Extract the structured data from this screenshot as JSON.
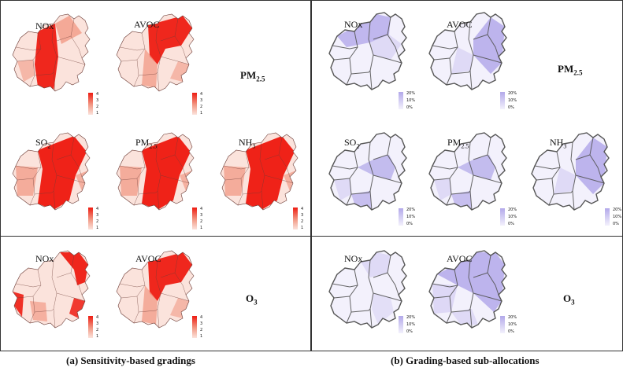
{
  "panels": {
    "a": {
      "caption": "(a) Sensitivity-based gradings",
      "row_labels": {
        "pm25_main": "PM",
        "pm25_sub": "2.5",
        "o3_main": "O",
        "o3_sub": "3"
      },
      "maps": {
        "nox_pm": {
          "label_main": "NOx",
          "label_sub": ""
        },
        "avoc_pm": {
          "label_main": "AVOC",
          "label_sub": ""
        },
        "so2": {
          "label_main": "SO",
          "label_sub": "2"
        },
        "pm25": {
          "label_main": "PM",
          "label_sub": "2.5"
        },
        "nh3": {
          "label_main": "NH",
          "label_sub": "3"
        },
        "nox_o3": {
          "label_main": "NOx",
          "label_sub": ""
        },
        "avoc_o3": {
          "label_main": "AVOC",
          "label_sub": ""
        }
      },
      "legend_ticks": [
        "4",
        "3",
        "2",
        "1"
      ]
    },
    "b": {
      "caption": "(b) Grading-based sub-allocations",
      "row_labels": {
        "pm25_main": "PM",
        "pm25_sub": "2.5",
        "o3_main": "O",
        "o3_sub": "3"
      },
      "maps": {
        "nox_pm": {
          "label_main": "NOx",
          "label_sub": ""
        },
        "avoc_pm": {
          "label_main": "AVOC",
          "label_sub": ""
        },
        "so2": {
          "label_main": "SO",
          "label_sub": "2"
        },
        "pm25": {
          "label_main": "PM",
          "label_sub": "2.5"
        },
        "nh3": {
          "label_main": "NH",
          "label_sub": "3"
        },
        "nox_o3": {
          "label_main": "NOx",
          "label_sub": ""
        },
        "avoc_o3": {
          "label_main": "AVOC",
          "label_sub": ""
        }
      },
      "legend_ticks": [
        "20%",
        "10%",
        "0%"
      ]
    }
  },
  "colors": {
    "grading_light": "#fbe3dc",
    "grading_mid": "#f29a86",
    "grading_dark": "#ee1c12",
    "alloc_light": "#f3f1fc",
    "alloc_mid": "#d9d4f4",
    "alloc_dark": "#b3a9ea",
    "border": "#333333",
    "outline": "#555555"
  }
}
